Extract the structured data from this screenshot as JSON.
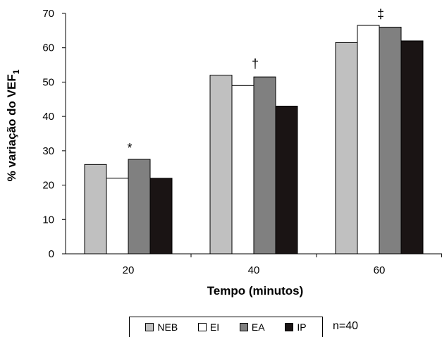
{
  "chart_data": {
    "type": "bar",
    "xlabel": "Tempo (minutos)",
    "ylabel": "% variação do VEF",
    "ylabel_subscript": "1",
    "ylim": [
      0,
      70
    ],
    "yticks": [
      0,
      10,
      20,
      30,
      40,
      50,
      60,
      70
    ],
    "categories": [
      "20",
      "40",
      "60"
    ],
    "series": [
      {
        "name": "NEB",
        "color": "#c0c0c0",
        "values": [
          26,
          52,
          61.5
        ]
      },
      {
        "name": "EI",
        "color": "#ffffff",
        "values": [
          22,
          49,
          66.5
        ]
      },
      {
        "name": "EA",
        "color": "#808080",
        "values": [
          27.5,
          51.5,
          66
        ]
      },
      {
        "name": "IP",
        "color": "#1a1414",
        "values": [
          22,
          43,
          62
        ]
      }
    ],
    "significance_markers": [
      "*",
      "†",
      "‡"
    ],
    "legend_position": "bottom",
    "grid": false
  },
  "sample_note": "n=40"
}
